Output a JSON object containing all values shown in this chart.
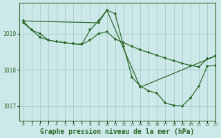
{
  "background_color": "#cce8e8",
  "grid_color": "#aacfcf",
  "line_color": "#2d6a2d",
  "title": "Graphe pression niveau de la mer (hPa)",
  "title_fontsize": 7,
  "xlim": [
    -0.5,
    23
  ],
  "ylim": [
    1016.6,
    1019.85
  ],
  "yticks": [
    1017,
    1018,
    1019
  ],
  "xtick_labels": [
    "0",
    "1",
    "2",
    "3",
    "4",
    "5",
    "6",
    "7",
    "8",
    "9",
    "10",
    "11",
    "12",
    "13",
    "14",
    "15",
    "16",
    "17",
    "18",
    "19",
    "20",
    "21",
    "22",
    "23"
  ],
  "series": [
    {
      "x": [
        0,
        1,
        2,
        3,
        4,
        5,
        6,
        7,
        8,
        9,
        10,
        11,
        12,
        13,
        14,
        15,
        16,
        17,
        18,
        19,
        20,
        21,
        22,
        23
      ],
      "y": [
        1019.3,
        1019.1,
        1018.9,
        1018.82,
        1018.78,
        1018.75,
        1018.72,
        1018.7,
        1018.82,
        1019.0,
        1019.05,
        1018.85,
        1018.75,
        1018.65,
        1018.55,
        1018.48,
        1018.4,
        1018.32,
        1018.25,
        1018.18,
        1018.12,
        1018.08,
        1018.3,
        1018.38
      ]
    },
    {
      "x": [
        0,
        1,
        2,
        3,
        4,
        5,
        6,
        7,
        8,
        9,
        10,
        11,
        12,
        13,
        14,
        15,
        16,
        17,
        18,
        19,
        20,
        21,
        22,
        23
      ],
      "y": [
        1019.35,
        1019.1,
        1019.0,
        1018.82,
        1018.78,
        1018.75,
        1018.72,
        1018.7,
        1019.1,
        1019.35,
        1019.65,
        1019.55,
        1018.65,
        1017.8,
        1017.55,
        1017.42,
        1017.35,
        1017.08,
        1017.02,
        1017.0,
        1017.22,
        1017.55,
        1018.1,
        1018.12
      ]
    },
    {
      "x": [
        0,
        9,
        10,
        14,
        23
      ],
      "y": [
        1019.35,
        1019.3,
        1019.65,
        1017.52,
        1018.38
      ]
    }
  ]
}
